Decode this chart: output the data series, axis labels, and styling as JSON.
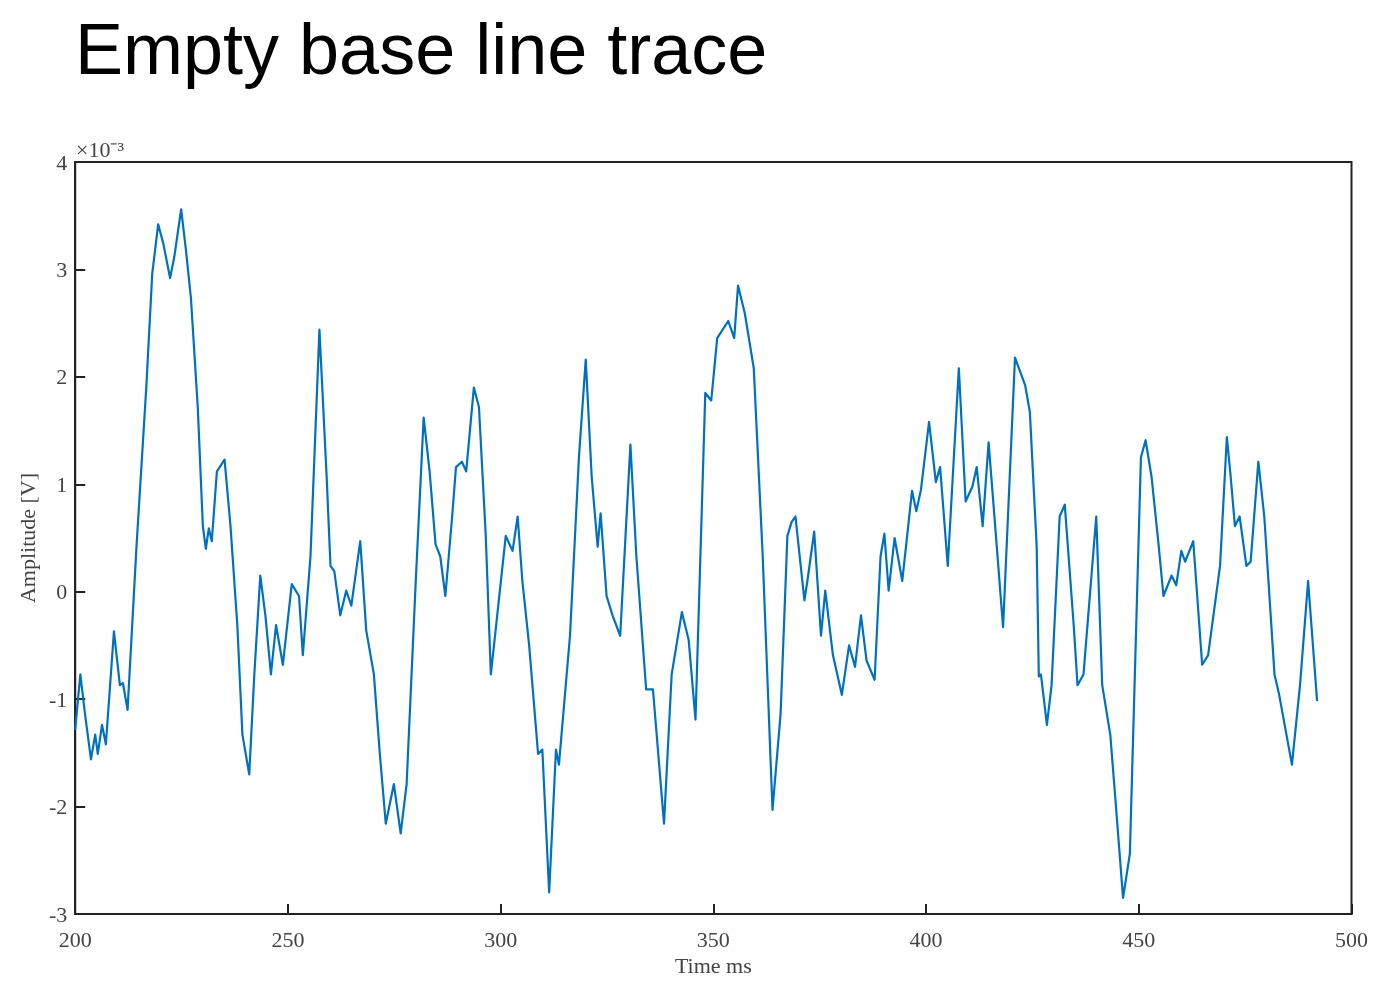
{
  "chart_data": {
    "type": "line",
    "title": "Empty base line trace",
    "xlabel": "Time ms",
    "ylabel": "Amplitude [V]",
    "annotations": [
      "×10⁻³"
    ],
    "xlim": [
      200,
      500
    ],
    "xticks": [
      200,
      250,
      300,
      350,
      400,
      450,
      500
    ],
    "ylim": [
      -3,
      4
    ],
    "yticks": [
      -3,
      -2,
      -1,
      0,
      1,
      2,
      3,
      4
    ],
    "grid": false,
    "marker": "none",
    "line_style": "solid",
    "x": [
      200,
      201.2,
      202.3,
      203.7,
      204.7,
      205.3,
      206.3,
      207.2,
      209.1,
      210.5,
      211.2,
      212.3,
      214.4,
      216.7,
      218.1,
      219.5,
      220.7,
      222.3,
      223.3,
      224.9,
      226,
      227.2,
      228.8,
      230,
      230.7,
      231.4,
      232.1,
      233.3,
      235.1,
      236.5,
      238.1,
      239.3,
      240.9,
      242.1,
      243.5,
      244.7,
      246,
      247.2,
      248.8,
      250.9,
      252.6,
      253.5,
      255.3,
      257.4,
      259.1,
      260,
      260.9,
      262.3,
      263.7,
      264.9,
      267,
      268.4,
      270.2,
      271.6,
      273,
      274.9,
      276.5,
      277.9,
      280,
      281.9,
      283.3,
      284.7,
      285.8,
      287,
      288.6,
      289.5,
      290.9,
      291.9,
      293.7,
      294.9,
      296.5,
      297.7,
      299.3,
      301.2,
      302.8,
      304,
      305.1,
      306.7,
      308.8,
      309.8,
      311.4,
      313,
      313.7,
      316.3,
      318.4,
      320,
      321.4,
      322.8,
      323.5,
      324.9,
      326.3,
      328.1,
      330.5,
      331.9,
      334.2,
      335.8,
      338.4,
      340.2,
      342.6,
      344.2,
      345.8,
      348.1,
      349.5,
      350.9,
      353.5,
      354.9,
      355.8,
      357.4,
      359.5,
      361.6,
      363.9,
      365.8,
      367.4,
      368.4,
      369.3,
      371.4,
      372.1,
      373.7,
      375.3,
      376.3,
      378.1,
      380.2,
      381.9,
      383.3,
      384.7,
      386,
      387.9,
      389.3,
      390.2,
      391.2,
      392.6,
      394.4,
      396.7,
      397.7,
      398.8,
      400.7,
      402.3,
      403.3,
      405.1,
      407.7,
      409.3,
      410.9,
      411.9,
      413.3,
      414.7,
      418.1,
      420.9,
      423.3,
      424.4,
      426,
      426.5,
      427,
      428.4,
      429.5,
      431.4,
      432.6,
      434.7,
      435.6,
      437,
      440,
      441.4,
      443.3,
      444.4,
      446.3,
      447.9,
      450.5,
      451.6,
      453,
      454.7,
      455.8,
      457.7,
      458.8,
      460,
      460.9,
      462.8,
      464.9,
      466.3,
      469.1,
      470.7,
      471.6,
      472.6,
      473.7,
      475.3,
      476.3,
      478.1,
      479.5,
      481.9,
      483,
      486,
      487.9,
      489.8,
      491.9
    ],
    "series": [
      {
        "color": "#0072bd",
        "values": [
          -1.28,
          -0.77,
          -1.14,
          -1.56,
          -1.33,
          -1.51,
          -1.24,
          -1.42,
          -0.37,
          -0.87,
          -0.85,
          -1.1,
          0.42,
          1.9,
          2.96,
          3.42,
          3.24,
          2.92,
          3.12,
          3.56,
          3.19,
          2.73,
          1.72,
          0.61,
          0.4,
          0.59,
          0.47,
          1.12,
          1.23,
          0.61,
          -0.31,
          -1.33,
          -1.7,
          -0.77,
          0.15,
          -0.22,
          -0.77,
          -0.31,
          -0.68,
          0.07,
          -0.04,
          -0.59,
          0.33,
          2.44,
          1.07,
          0.24,
          0.19,
          -0.22,
          0.01,
          -0.13,
          0.47,
          -0.36,
          -0.77,
          -1.51,
          -2.16,
          -1.79,
          -2.25,
          -1.79,
          0.06,
          1.62,
          1.12,
          0.44,
          0.33,
          -0.04,
          0.7,
          1.16,
          1.21,
          1.12,
          1.9,
          1.72,
          0.52,
          -0.77,
          -0.18,
          0.52,
          0.38,
          0.7,
          0.1,
          -0.5,
          -1.51,
          -1.47,
          -2.8,
          -1.47,
          -1.61,
          -0.41,
          1.25,
          2.16,
          1.07,
          0.42,
          0.73,
          -0.04,
          -0.22,
          -0.41,
          1.37,
          0.33,
          -0.91,
          -0.91,
          -2.16,
          -0.77,
          -0.19,
          -0.45,
          -1.19,
          1.85,
          1.78,
          2.36,
          2.52,
          2.36,
          2.85,
          2.59,
          2.08,
          0.33,
          -2.03,
          -1.14,
          0.52,
          0.65,
          0.7,
          -0.08,
          0.1,
          0.56,
          -0.41,
          0.01,
          -0.59,
          -0.96,
          -0.5,
          -0.7,
          -0.22,
          -0.64,
          -0.82,
          0.33,
          0.54,
          0.01,
          0.5,
          0.1,
          0.94,
          0.75,
          0.95,
          1.58,
          1.02,
          1.16,
          0.24,
          2.08,
          0.84,
          0.98,
          1.16,
          0.61,
          1.39,
          -0.33,
          2.18,
          1.92,
          1.67,
          0.42,
          -0.79,
          -0.77,
          -1.24,
          -0.87,
          0.7,
          0.81,
          -0.31,
          -0.87,
          -0.77,
          0.7,
          -0.87,
          -1.33,
          -1.88,
          -2.85,
          -2.44,
          1.25,
          1.41,
          1.07,
          0.42,
          -0.04,
          0.15,
          0.06,
          0.38,
          0.28,
          0.47,
          -0.68,
          -0.59,
          0.24,
          1.44,
          1.07,
          0.61,
          0.7,
          0.24,
          0.28,
          1.21,
          0.7,
          -0.77,
          -0.96,
          -1.61,
          -0.87,
          0.1,
          -1.01
        ]
      }
    ]
  }
}
